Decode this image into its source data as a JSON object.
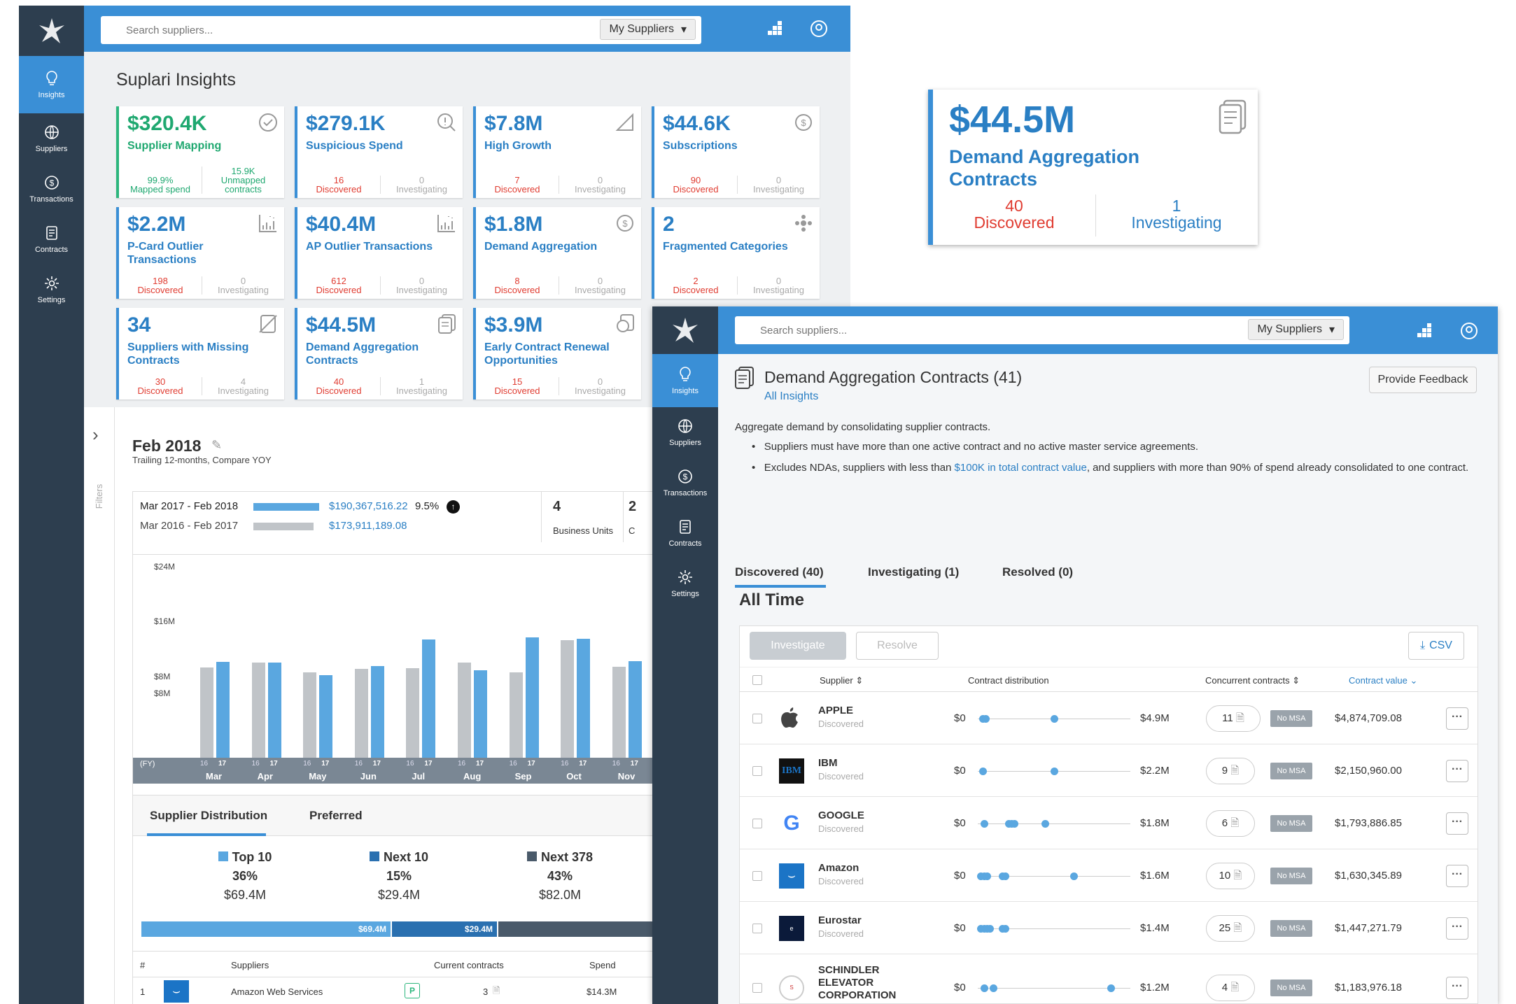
{
  "app": {
    "search_placeholder": "Search suppliers...",
    "filter": "My Suppliers"
  },
  "nav": [
    {
      "label": "Insights"
    },
    {
      "label": "Suppliers"
    },
    {
      "label": "Transactions"
    },
    {
      "label": "Contracts"
    },
    {
      "label": "Settings"
    }
  ],
  "insights": {
    "title": "Suplari Insights",
    "cards": [
      {
        "value": "$320.4K",
        "title": "Supplier Mapping",
        "left_num": "99.9%",
        "left_label": "Mapped spend",
        "right_num": "15.9K",
        "right_label": "Unmapped contracts",
        "icon": "check-circle-icon"
      },
      {
        "value": "$279.1K",
        "title": "Suspicious Spend",
        "left_num": "16",
        "left_label": "Discovered",
        "right_num": "0",
        "right_label": "Investigating",
        "icon": "magnify-alert-icon"
      },
      {
        "value": "$7.8M",
        "title": "High Growth",
        "left_num": "7",
        "left_label": "Discovered",
        "right_num": "0",
        "right_label": "Investigating",
        "icon": "growth-icon"
      },
      {
        "value": "$44.6K",
        "title": "Subscriptions",
        "left_num": "90",
        "left_label": "Discovered",
        "right_num": "0",
        "right_label": "Investigating",
        "icon": "dollar-refresh-icon"
      },
      {
        "value": "$2.2M",
        "title": "P-Card Outlier Transactions",
        "left_num": "198",
        "left_label": "Discovered",
        "right_num": "0",
        "right_label": "Investigating",
        "icon": "outlier-chart-icon"
      },
      {
        "value": "$40.4M",
        "title": "AP Outlier Transactions",
        "left_num": "612",
        "left_label": "Discovered",
        "right_num": "0",
        "right_label": "Investigating",
        "icon": "outlier-chart-icon"
      },
      {
        "value": "$1.8M",
        "title": "Demand Aggregation",
        "left_num": "8",
        "left_label": "Discovered",
        "right_num": "0",
        "right_label": "Investigating",
        "icon": "dollar-refresh-icon"
      },
      {
        "value": "2",
        "title": "Fragmented Categories",
        "left_num": "2",
        "left_label": "Discovered",
        "right_num": "0",
        "right_label": "Investigating",
        "icon": "fragment-icon"
      },
      {
        "value": "34",
        "title": "Suppliers with Missing Contracts",
        "left_num": "30",
        "left_label": "Discovered",
        "right_num": "4",
        "right_label": "Investigating",
        "icon": "doc-missing-icon"
      },
      {
        "value": "$44.5M",
        "title": "Demand Aggregation Contracts",
        "left_num": "40",
        "left_label": "Discovered",
        "right_num": "1",
        "right_label": "Investigating",
        "icon": "contracts-icon"
      },
      {
        "value": "$3.9M",
        "title": "Early Contract Renewal Opportunities",
        "left_num": "15",
        "left_label": "Discovered",
        "right_num": "0",
        "right_label": "Investigating",
        "icon": "renewal-icon"
      }
    ]
  },
  "feature": {
    "value": "$44.5M",
    "title": "Demand Aggregation Contracts",
    "left_num": "40",
    "left_label": "Discovered",
    "right_num": "1",
    "right_label": "Investigating"
  },
  "dashboard": {
    "period": "Feb 2018",
    "subtitle": "Trailing 12-months, Compare YOY",
    "filters_label": "Filters",
    "cur_range": "Mar 2017 - Feb 2018",
    "cur_value": "$190,367,516.22",
    "change": "9.5%",
    "prev_range": "Mar 2016 - Feb 2017",
    "prev_value": "$173,911,189.08",
    "bu_count": "4",
    "bu_label": "Business Units",
    "clipped": "2",
    "clipped2": "C"
  },
  "chart_data": {
    "type": "bar",
    "ylabels": [
      "$24M",
      "$16M",
      "$8M",
      "$8M"
    ],
    "fy_label": "(FY)",
    "year_a": "16",
    "year_b": "17",
    "categories": [
      "Mar",
      "Apr",
      "May",
      "Jun",
      "Jul",
      "Aug",
      "Sep",
      "Oct",
      "Nov"
    ],
    "ylim": [
      0,
      24
    ],
    "series": [
      {
        "name": "16",
        "color": "#c0c4c8",
        "values": [
          11.6,
          12.2,
          11,
          11.4,
          11.5,
          12.2,
          11,
          15.1,
          11.7
        ]
      },
      {
        "name": "17",
        "color": "#5aa7e0",
        "values": [
          12.3,
          12.2,
          10.6,
          11.8,
          15.2,
          11.2,
          15.5,
          15.3,
          12.4
        ]
      }
    ]
  },
  "distribution": {
    "tabs": [
      "Supplier Distribution",
      "Preferred"
    ],
    "groups": [
      {
        "name": "Top 10",
        "pct": "36%",
        "amt": "$69.4M",
        "color": "#5aa7e0"
      },
      {
        "name": "Next 10",
        "pct": "15%",
        "amt": "$29.4M",
        "color": "#2a70b0"
      },
      {
        "name": "Next 378",
        "pct": "43%",
        "amt": "$82.0M",
        "color": "#4a5a6a"
      }
    ],
    "bar_labels": [
      "$69.4M",
      "$29.4M"
    ],
    "table_headers": [
      "#",
      "Suppliers",
      "Current contracts",
      "Spend"
    ],
    "table_rows": [
      {
        "num": "1",
        "name": "Amazon Web Services",
        "badge": "P",
        "contracts": "3",
        "spend": "$14.3M"
      }
    ]
  },
  "detail": {
    "title": "Demand Aggregation Contracts (41)",
    "breadcrumb": "All Insights",
    "feedback": "Provide Feedback",
    "description": "Aggregate demand by consolidating supplier contracts.",
    "bullet1": "Suppliers must have more than one active contract and no active master service agreements.",
    "bullet2_pre": "Excludes NDAs, suppliers with less than ",
    "bullet2_link": "$100K in total contract value",
    "bullet2_post": ", and suppliers with more than 90% of spend already consolidated to one contract.",
    "tabs": [
      "Discovered (40)",
      "Investigating (1)",
      "Resolved (0)"
    ],
    "section": "All Time",
    "investigate": "Investigate",
    "resolve": "Resolve",
    "csv": "CSV",
    "columns": [
      "Supplier",
      "Contract distribution",
      "Concurrent contracts",
      "Contract value"
    ],
    "rows": [
      {
        "name": "APPLE",
        "status": "Discovered",
        "min": "$0",
        "max": "$4.9M",
        "count": "11",
        "msa": "No MSA",
        "value": "$4,874,709.08",
        "dots": [
          0.03,
          0.05,
          0.5
        ]
      },
      {
        "name": "IBM",
        "status": "Discovered",
        "min": "$0",
        "max": "$2.2M",
        "count": "9",
        "msa": "No MSA",
        "value": "$2,150,960.00",
        "dots": [
          0.03,
          0.5
        ]
      },
      {
        "name": "GOOGLE",
        "status": "Discovered",
        "min": "$0",
        "max": "$1.8M",
        "count": "6",
        "msa": "No MSA",
        "value": "$1,793,886.85",
        "dots": [
          0.04,
          0.2,
          0.22,
          0.24,
          0.44
        ]
      },
      {
        "name": "Amazon",
        "status": "Discovered",
        "min": "$0",
        "max": "$1.6M",
        "count": "10",
        "msa": "No MSA",
        "value": "$1,630,345.89",
        "dots": [
          0.02,
          0.04,
          0.06,
          0.16,
          0.18,
          0.63
        ]
      },
      {
        "name": "Eurostar",
        "status": "Discovered",
        "min": "$0",
        "max": "$1.4M",
        "count": "25",
        "msa": "No MSA",
        "value": "$1,447,271.79",
        "dots": [
          0.02,
          0.04,
          0.06,
          0.08,
          0.16,
          0.18
        ]
      },
      {
        "name": "SCHINDLER ELEVATOR CORPORATION",
        "status": "Discovered",
        "min": "$0",
        "max": "$1.2M",
        "count": "4",
        "msa": "No MSA",
        "value": "$1,183,976.18",
        "dots": [
          0.04,
          0.1,
          0.87
        ]
      }
    ]
  }
}
